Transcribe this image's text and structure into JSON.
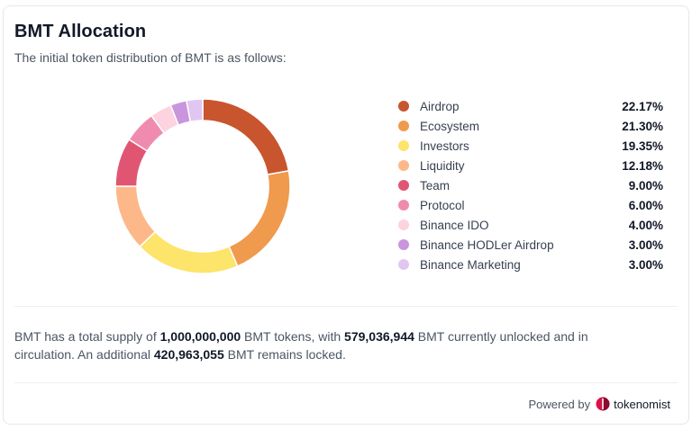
{
  "header": {
    "title": "BMT Allocation",
    "subtitle": "The initial token distribution of BMT is as follows:"
  },
  "chart_data": {
    "type": "pie",
    "donut": true,
    "categories": [
      "Airdrop",
      "Ecosystem",
      "Investors",
      "Liquidity",
      "Team",
      "Protocol",
      "Binance IDO",
      "Binance HODLer Airdrop",
      "Binance Marketing"
    ],
    "values": [
      22.17,
      21.3,
      19.35,
      12.18,
      9.0,
      6.0,
      4.0,
      3.0,
      3.0
    ],
    "labels": [
      "22.17%",
      "21.30%",
      "19.35%",
      "12.18%",
      "9.00%",
      "6.00%",
      "4.00%",
      "3.00%",
      "3.00%"
    ],
    "colors": [
      "#c8552d",
      "#ef9a4d",
      "#fde46a",
      "#fdb88a",
      "#e05672",
      "#f08bb0",
      "#fcd3df",
      "#c995dc",
      "#e2c6f2"
    ],
    "legend_position": "right"
  },
  "summary": {
    "p1": "BMT has a total supply of ",
    "total_supply": "1,000,000,000",
    "p2": " BMT tokens, with ",
    "unlocked": "579,036,944",
    "p3": " BMT currently unlocked and in circulation. An additional ",
    "locked": "420,963,055",
    "p4": " BMT remains locked."
  },
  "footer": {
    "powered_by": "Powered by",
    "brand": "tokenomist",
    "icon": "tokenomist-logo-icon",
    "brand_color": "#d9134a"
  }
}
